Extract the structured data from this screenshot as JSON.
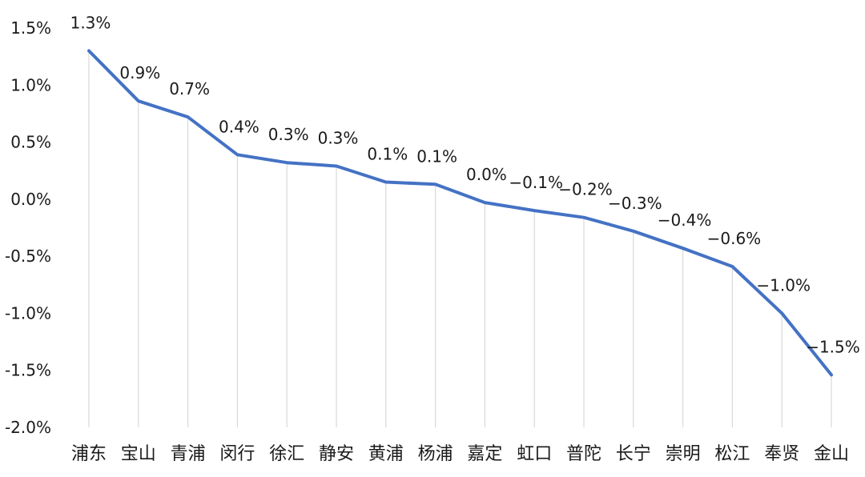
{
  "chart_data": {
    "type": "line",
    "title": "",
    "xlabel": "",
    "ylabel": "",
    "categories": [
      "浦东",
      "宝山",
      "青浦",
      "闵行",
      "徐汇",
      "静安",
      "黄浦",
      "杨浦",
      "嘉定",
      "虹口",
      "普陀",
      "长宁",
      "崇明",
      "松江",
      "奉贤",
      "金山"
    ],
    "series": [
      {
        "values": [
          1.3,
          0.86,
          0.72,
          0.39,
          0.32,
          0.29,
          0.15,
          0.13,
          -0.03,
          -0.1,
          -0.16,
          -0.28,
          -0.43,
          -0.59,
          -1.0,
          -1.54
        ],
        "data_labels": [
          "1.3%",
          "0.9%",
          "0.7%",
          "0.4%",
          "0.3%",
          "0.3%",
          "0.1%",
          "0.1%",
          "0.0%",
          "−0.1%",
          "−0.2%",
          "−0.3%",
          "−0.4%",
          "−0.6%",
          "−1.0%",
          "−1.5%"
        ],
        "color": "#4472C4"
      }
    ],
    "ylim": [
      -2.0,
      1.5
    ],
    "yticks": [
      1.5,
      1.0,
      0.5,
      0.0,
      -0.5,
      -1.0,
      -1.5,
      -2.0
    ],
    "ytick_labels": [
      "1.5%",
      "1.0%",
      "0.5%",
      "0.0%",
      "-0.5%",
      "-1.0%",
      "-1.5%",
      "-2.0%"
    ],
    "drop_lines": true,
    "drop_line_color": "#d9d9d9",
    "legend": "none",
    "grid": false
  }
}
